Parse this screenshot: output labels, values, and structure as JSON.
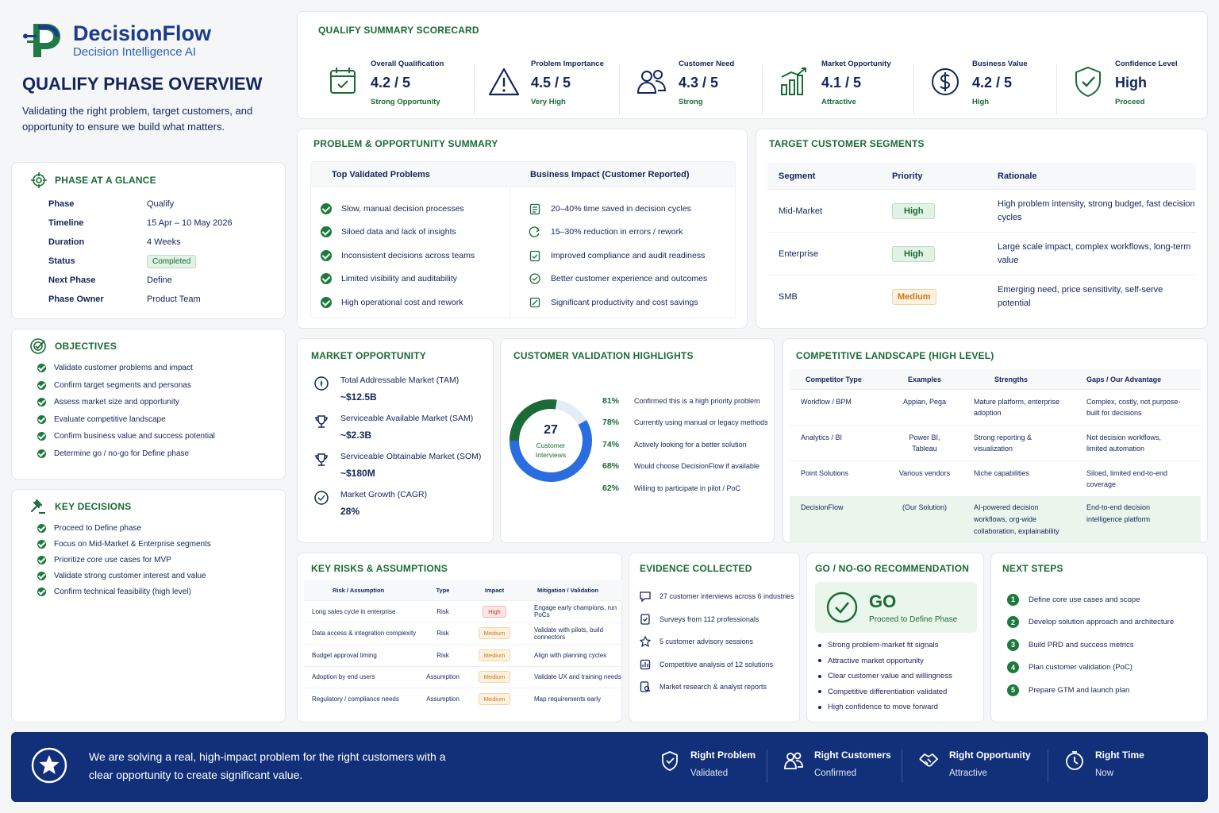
{
  "brand": {
    "name": "DecisionFlow",
    "tagline": "Decision Intelligence AI"
  },
  "page": {
    "title": "QUALIFY PHASE OVERVIEW",
    "subtitle": "Validating the right problem, target customers, and opportunity to ensure we build what matters."
  },
  "glance": {
    "title": "PHASE AT A GLANCE",
    "rows": [
      {
        "key": "Phase",
        "value": "Qualify"
      },
      {
        "key": "Timeline",
        "value": "15 Apr – 10 May 2026"
      },
      {
        "key": "Duration",
        "value": "4 Weeks"
      },
      {
        "key": "Status",
        "value": "Completed"
      },
      {
        "key": "Next Phase",
        "value": "Define"
      },
      {
        "key": "Phase Owner",
        "value": "Product Team"
      }
    ]
  },
  "objectives": {
    "title": "OBJECTIVES",
    "items": [
      "Validate customer problems and impact",
      "Confirm target segments and personas",
      "Assess market size and opportunity",
      "Evaluate competitive landscape",
      "Confirm business value and success potential",
      "Determine go / no-go for Define phase"
    ]
  },
  "decisions": {
    "title": "KEY DECISIONS",
    "items": [
      "Proceed to Define phase",
      "Focus on Mid-Market & Enterprise segments",
      "Prioritize core use cases for MVP",
      "Validate strong customer interest and value",
      "Confirm technical feasibility (high level)"
    ]
  },
  "scorecard": {
    "title": "QUALIFY SUMMARY SCORECARD",
    "items": [
      {
        "label": "Overall Qualification",
        "value": "4.2 / 5",
        "sub": "Strong Opportunity",
        "icon": "calendar-check-icon"
      },
      {
        "label": "Problem Importance",
        "value": "4.5 / 5",
        "sub": "Very High",
        "icon": "warning-icon"
      },
      {
        "label": "Customer Need",
        "value": "4.3 / 5",
        "sub": "Strong",
        "icon": "users-icon"
      },
      {
        "label": "Market Opportunity",
        "value": "4.1 / 5",
        "sub": "Attractive",
        "icon": "bar-chart-icon"
      },
      {
        "label": "Business Value",
        "value": "4.2 / 5",
        "sub": "High",
        "icon": "dollar-icon"
      },
      {
        "label": "Confidence Level",
        "value": "High",
        "sub": "Proceed",
        "icon": "shield-check-icon"
      }
    ]
  },
  "problem": {
    "title": "PROBLEM & OPPORTUNITY SUMMARY",
    "col1": "Top Validated Problems",
    "col2": "Business Impact (Customer Reported)",
    "problems": [
      "Slow, manual decision processes",
      "Siloed data and lack of insights",
      "Inconsistent decisions across teams",
      "Limited visibility and auditability",
      "High operational cost and rework"
    ],
    "impacts": [
      "20–40% time saved in decision cycles",
      "15–30% reduction in errors / rework",
      "Improved compliance and audit readiness",
      "Better customer experience and outcomes",
      "Significant productivity and cost savings"
    ]
  },
  "segments": {
    "title": "TARGET CUSTOMER SEGMENTS",
    "headers": [
      "Segment",
      "Priority",
      "Rationale"
    ],
    "rows": [
      {
        "segment": "Mid-Market",
        "priority": "High",
        "rationale": "High problem intensity, strong budget, fast decision cycles"
      },
      {
        "segment": "Enterprise",
        "priority": "High",
        "rationale": "Large scale impact, complex workflows, long-term value"
      },
      {
        "segment": "SMB",
        "priority": "Medium",
        "rationale": "Emerging need, price sensitivity, self-serve potential"
      }
    ]
  },
  "market": {
    "title": "MARKET OPPORTUNITY",
    "items": [
      {
        "label": "Total Addressable Market (TAM)",
        "value": "~$12.5B"
      },
      {
        "label": "Serviceable Available Market (SAM)",
        "value": "~$2.3B"
      },
      {
        "label": "Serviceable Obtainable Market (SOM)",
        "value": "~$180M"
      },
      {
        "label": "Market Growth (CAGR)",
        "value": "28%"
      }
    ]
  },
  "validation": {
    "title": "CUSTOMER VALIDATION HIGHLIGHTS",
    "donut_value": "27",
    "donut_label": "Customer Interviews",
    "items": [
      {
        "pct": "81%",
        "text": "Confirmed this is a high priority problem"
      },
      {
        "pct": "78%",
        "text": "Currently using manual or legacy methods"
      },
      {
        "pct": "74%",
        "text": "Actively looking for a better solution"
      },
      {
        "pct": "68%",
        "text": "Would choose DecisionFlow if available"
      },
      {
        "pct": "62%",
        "text": "Willing to participate in pilot / PoC"
      }
    ]
  },
  "competitive": {
    "title": "COMPETITIVE LANDSCAPE (HIGH LEVEL)",
    "headers": [
      "Competitor Type",
      "Examples",
      "Strengths",
      "Gaps / Our Advantage"
    ],
    "rows": [
      {
        "type": "Workflow / BPM",
        "examples": "Appian, Pega",
        "strengths": "Mature platform, enterprise adoption",
        "gaps": "Complex, costly, not purpose-built for decisions"
      },
      {
        "type": "Analytics / BI",
        "examples": "Power BI, Tableau",
        "strengths": "Strong reporting & visualization",
        "gaps": "Not decision workflows, limited automation"
      },
      {
        "type": "Point Solutions",
        "examples": "Various vendors",
        "strengths": "Niche capabilities",
        "gaps": "Siloed, limited end-to-end coverage"
      },
      {
        "type": "DecisionFlow",
        "examples": "(Our Solution)",
        "strengths": "AI-powered decision workflows, org-wide collaboration, explainability",
        "gaps": "End-to-end decision intelligence platform"
      }
    ]
  },
  "risks": {
    "title": "KEY RISKS & ASSUMPTIONS",
    "headers": [
      "Risk / Assumption",
      "Type",
      "Impact",
      "Mitigation / Validation"
    ],
    "rows": [
      {
        "risk": "Long sales cycle in enterprise",
        "type": "Risk",
        "impact": "High",
        "mitigation": "Engage early champions, run PoCs"
      },
      {
        "risk": "Data access & integration complexity",
        "type": "Risk",
        "impact": "Medium",
        "mitigation": "Validate with pilots, build connectors"
      },
      {
        "risk": "Budget approval timing",
        "type": "Risk",
        "impact": "Medium",
        "mitigation": "Align with planning cycles"
      },
      {
        "risk": "Adoption by end users",
        "type": "Assumption",
        "impact": "Medium",
        "mitigation": "Validate UX and training needs"
      },
      {
        "risk": "Regulatory / compliance needs",
        "type": "Assumption",
        "impact": "Medium",
        "mitigation": "Map requirements early"
      }
    ]
  },
  "evidence": {
    "title": "EVIDENCE COLLECTED",
    "items": [
      "27 customer interviews across 6 industries",
      "Surveys from 112 professionals",
      "5 customer advisory sessions",
      "Competitive analysis of 12 solutions",
      "Market research & analyst reports"
    ]
  },
  "gonogo": {
    "title": "GO / NO-GO RECOMMENDATION",
    "verdict": "GO",
    "verdict_sub": "Proceed to Define Phase",
    "bullets": [
      "Strong problem-market fit signals",
      "Attractive market opportunity",
      "Clear customer value and willingness",
      "Competitive differentiation validated",
      "High confidence to move forward"
    ]
  },
  "next_steps": {
    "title": "NEXT STEPS",
    "items": [
      "Define core use cases and scope",
      "Develop solution approach and architecture",
      "Build PRD and success metrics",
      "Plan customer validation (PoC)",
      "Prepare GTM and launch plan"
    ]
  },
  "footer": {
    "message": "We are solving a real, high-impact problem for the right customers with a clear opportunity to create significant value.",
    "items": [
      {
        "title": "Right Problem",
        "sub": "Validated",
        "icon": "shield-check-icon"
      },
      {
        "title": "Right Customers",
        "sub": "Confirmed",
        "icon": "users-icon"
      },
      {
        "title": "Right Opportunity",
        "sub": "Attractive",
        "icon": "handshake-icon"
      },
      {
        "title": "Right Time",
        "sub": "Now",
        "icon": "clock-icon"
      }
    ]
  },
  "colors": {
    "navy": "#14255a",
    "green": "#1a6b35",
    "blue": "#2a6de0",
    "footer_bg": "#12307a"
  }
}
